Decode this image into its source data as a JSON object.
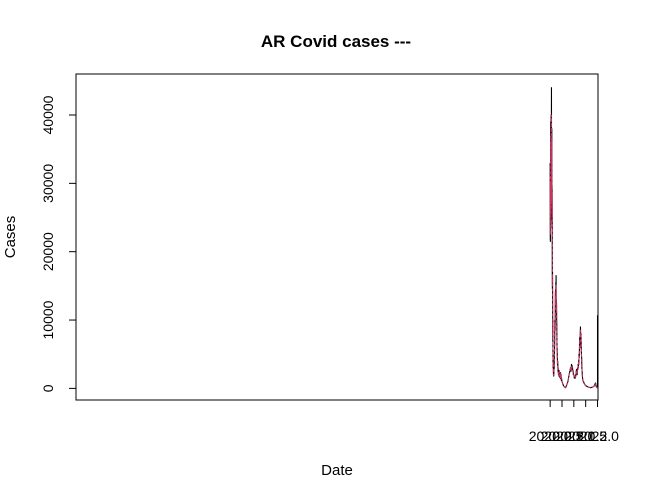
{
  "chart_data": {
    "type": "line",
    "title": "AR Covid cases ---",
    "xlabel": "Date",
    "ylabel": "Cases",
    "xlim": [
      1999.98,
      2022.02
    ],
    "ylim": [
      -1700,
      46000
    ],
    "xticks": [
      2020.0,
      2020.5,
      2021.0,
      2021.5,
      2022.0
    ],
    "xtick_labels": [
      "2020.0",
      "2020.5",
      "2021.0",
      "2021.5",
      "2022.0"
    ],
    "yticks": [
      0,
      10000,
      20000,
      30000,
      40000
    ],
    "ytick_labels": [
      "0",
      "10000",
      "20000",
      "30000",
      "40000"
    ],
    "grid": false,
    "legend": "none",
    "series": [
      {
        "color": "#000000",
        "x": [
          2020.0,
          2020.005,
          2020.01,
          2020.015,
          2020.02,
          2020.025,
          2020.03,
          2020.035,
          2020.04,
          2020.045,
          2020.05,
          2020.055,
          2020.06,
          2020.065,
          2020.07,
          2020.075,
          2020.08,
          2020.085,
          2020.09,
          2020.095,
          2020.1,
          2020.105,
          2020.11,
          2020.115,
          2020.12,
          2020.125,
          2020.13,
          2020.14,
          2020.15,
          2020.16,
          2020.17,
          2020.18,
          2020.19,
          2020.2,
          2020.21,
          2020.22,
          2020.23,
          2020.235,
          2020.24,
          2020.245,
          2020.25,
          2020.255,
          2020.26,
          2020.265,
          2020.27,
          2020.275,
          2020.28,
          2020.29,
          2020.3,
          2020.31,
          2020.32,
          2020.33,
          2020.34,
          2020.35,
          2020.36,
          2020.37,
          2020.38,
          2020.39,
          2020.4,
          2020.41,
          2020.42,
          2020.43,
          2020.44,
          2020.45,
          2020.46,
          2020.47,
          2020.48,
          2020.5,
          2020.55,
          2020.6,
          2020.65,
          2020.7,
          2020.75,
          2020.8,
          2020.83,
          2020.86,
          2020.88,
          2020.9,
          2020.91,
          2020.92,
          2020.93,
          2020.94,
          2020.95,
          2020.96,
          2020.97,
          2020.98,
          2021.0,
          2021.02,
          2021.04,
          2021.06,
          2021.08,
          2021.1,
          2021.12,
          2021.14,
          2021.15,
          2021.16,
          2021.17,
          2021.18,
          2021.19,
          2021.2,
          2021.21,
          2021.22,
          2021.23,
          2021.24,
          2021.25,
          2021.26,
          2021.27,
          2021.28,
          2021.29,
          2021.3,
          2021.31,
          2021.32,
          2021.33,
          2021.34,
          2021.35,
          2021.36,
          2021.38,
          2021.4,
          2021.42,
          2021.44,
          2021.46,
          2021.5,
          2021.6,
          2021.7,
          2021.8,
          2021.85,
          2021.88,
          2021.9,
          2021.91,
          2021.92,
          2021.94,
          2021.96,
          2021.98,
          2022.0,
          2022.0
        ],
        "y": [
          33000,
          22000,
          21500,
          32000,
          24500,
          39000,
          25000,
          32000,
          40000,
          27000,
          34000,
          44000,
          26000,
          37000,
          38000,
          23500,
          29500,
          28000,
          17000,
          14500,
          17000,
          12000,
          7000,
          10000,
          4000,
          3000,
          3500,
          2000,
          1800,
          2500,
          3000,
          5000,
          6500,
          10000,
          8500,
          14000,
          14500,
          12000,
          15500,
          13000,
          16500,
          11500,
          13000,
          11000,
          12500,
          10000,
          9500,
          6000,
          5000,
          3500,
          4000,
          2500,
          3000,
          2000,
          2500,
          1800,
          2600,
          1800,
          2200,
          1600,
          2200,
          1500,
          2300,
          1400,
          2000,
          1200,
          1500,
          1000,
          500,
          200,
          100,
          500,
          1000,
          2000,
          2500,
          3000,
          2500,
          3500,
          2800,
          3400,
          3000,
          3200,
          2800,
          2500,
          2600,
          2000,
          2000,
          1500,
          1800,
          1500,
          1800,
          2500,
          2800,
          2000,
          2500,
          3000,
          2800,
          3500,
          3000,
          4000,
          3500,
          5000,
          4500,
          6500,
          7500,
          6000,
          8000,
          9000,
          7500,
          8000,
          6500,
          5000,
          4500,
          3000,
          2500,
          1800,
          1200,
          1000,
          900,
          700,
          600,
          400,
          200,
          100,
          200,
          300,
          500,
          700,
          500,
          800,
          300,
          200,
          100,
          200,
          10700
        ]
      },
      {
        "color": "#d03060",
        "x": [
          2020.0,
          2020.005,
          2020.01,
          2020.015,
          2020.02,
          2020.025,
          2020.03,
          2020.035,
          2020.04,
          2020.045,
          2020.05,
          2020.055,
          2020.06,
          2020.065,
          2020.07,
          2020.075,
          2020.08,
          2020.085,
          2020.09,
          2020.095,
          2020.1,
          2020.105,
          2020.11,
          2020.115,
          2020.12,
          2020.125,
          2020.13,
          2020.14,
          2020.15,
          2020.16,
          2020.17,
          2020.18,
          2020.19,
          2020.2,
          2020.21,
          2020.22,
          2020.23,
          2020.235,
          2020.24,
          2020.245,
          2020.25,
          2020.255,
          2020.26,
          2020.265,
          2020.27,
          2020.275,
          2020.28,
          2020.29,
          2020.3,
          2020.31,
          2020.32,
          2020.33,
          2020.34,
          2020.35,
          2020.36,
          2020.37,
          2020.38,
          2020.39,
          2020.4,
          2020.41,
          2020.42,
          2020.43,
          2020.44,
          2020.45,
          2020.46,
          2020.47,
          2020.48,
          2020.5,
          2020.55,
          2020.6,
          2020.65,
          2020.7,
          2020.75,
          2020.8,
          2020.83,
          2020.86,
          2020.88,
          2020.9,
          2020.91,
          2020.92,
          2020.93,
          2020.94,
          2020.95,
          2020.96,
          2020.97,
          2020.98,
          2021.0,
          2021.02,
          2021.04,
          2021.06,
          2021.08,
          2021.1,
          2021.12,
          2021.14,
          2021.15,
          2021.16,
          2021.17,
          2021.18,
          2021.19,
          2021.2,
          2021.21,
          2021.22,
          2021.23,
          2021.24,
          2021.25,
          2021.26,
          2021.27,
          2021.28,
          2021.29,
          2021.3,
          2021.31,
          2021.32,
          2021.33,
          2021.34,
          2021.35,
          2021.36,
          2021.38,
          2021.4,
          2021.42,
          2021.44,
          2021.46,
          2021.5,
          2021.6,
          2021.7,
          2021.8,
          2021.85,
          2021.88,
          2021.9,
          2021.91,
          2021.92,
          2021.94,
          2021.96,
          2021.98,
          2022.0
        ],
        "y": [
          31000,
          23000,
          22500,
          30000,
          25500,
          36000,
          26500,
          31000,
          37000,
          28000,
          33000,
          40000,
          27500,
          35000,
          36000,
          25000,
          28500,
          27000,
          17500,
          15000,
          16500,
          12500,
          7500,
          9800,
          4300,
          3200,
          3400,
          2100,
          1900,
          2500,
          3000,
          4900,
          6300,
          9600,
          8600,
          13200,
          13600,
          12200,
          14600,
          12800,
          15200,
          11700,
          12600,
          11200,
          12100,
          10100,
          9300,
          6100,
          5000,
          3600,
          3900,
          2600,
          2900,
          2100,
          2400,
          1900,
          2500,
          1900,
          2100,
          1700,
          2100,
          1600,
          2200,
          1500,
          1900,
          1300,
          1400,
          1000,
          500,
          200,
          100,
          500,
          1000,
          2000,
          2500,
          2900,
          2600,
          3300,
          2900,
          3300,
          3000,
          3100,
          2800,
          2500,
          2500,
          2000,
          2000,
          1600,
          1800,
          1600,
          1800,
          2400,
          2700,
          2100,
          2500,
          2900,
          2800,
          3400,
          3000,
          3900,
          3500,
          4800,
          4500,
          6200,
          7100,
          6100,
          7700,
          8500,
          7400,
          7700,
          6400,
          5000,
          4400,
          3000,
          2500,
          1800,
          1200,
          1000,
          900,
          700,
          600,
          400,
          200,
          100,
          200,
          300,
          500,
          650,
          500,
          700,
          300,
          200,
          100,
          200
        ]
      }
    ]
  }
}
